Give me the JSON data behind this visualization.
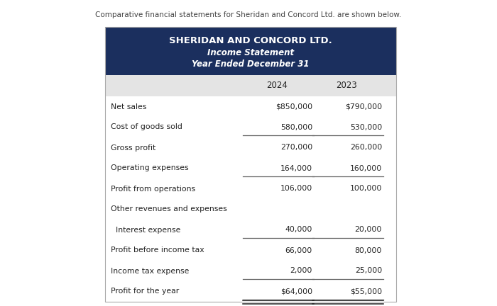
{
  "intro_text": "Comparative financial statements for Sheridan and Concord Ltd. are shown below.",
  "header_line1": "SHERIDAN AND CONCORD LTD.",
  "header_line2": "Income Statement",
  "header_line3": "Year Ended December 31",
  "header_bg": "#1b2f5e",
  "header_text_color": "#ffffff",
  "col_header_bg": "#e4e4e4",
  "col_header_2024": "2024",
  "col_header_2023": "2023",
  "rows": [
    {
      "label": "Net sales",
      "val2024": "$850,000",
      "val2023": "$790,000",
      "ul_below_2024": false,
      "ul_below_2023": false,
      "indent": false
    },
    {
      "label": "Cost of goods sold",
      "val2024": "580,000",
      "val2023": "530,000",
      "ul_below_2024": true,
      "ul_below_2023": true,
      "indent": false
    },
    {
      "label": "Gross profit",
      "val2024": "270,000",
      "val2023": "260,000",
      "ul_below_2024": false,
      "ul_below_2023": false,
      "indent": false
    },
    {
      "label": "Operating expenses",
      "val2024": "164,000",
      "val2023": "160,000",
      "ul_below_2024": true,
      "ul_below_2023": true,
      "indent": false
    },
    {
      "label": "Profit from operations",
      "val2024": "106,000",
      "val2023": "100,000",
      "ul_below_2024": false,
      "ul_below_2023": false,
      "indent": false
    },
    {
      "label": "Other revenues and expenses",
      "val2024": "",
      "val2023": "",
      "ul_below_2024": false,
      "ul_below_2023": false,
      "indent": false
    },
    {
      "label": "  Interest expense",
      "val2024": "40,000",
      "val2023": "20,000",
      "ul_below_2024": true,
      "ul_below_2023": true,
      "indent": false
    },
    {
      "label": "Profit before income tax",
      "val2024": "66,000",
      "val2023": "80,000",
      "ul_below_2024": false,
      "ul_below_2023": false,
      "indent": false
    },
    {
      "label": "Income tax expense",
      "val2024": "2,000",
      "val2023": "25,000",
      "ul_below_2024": true,
      "ul_below_2023": true,
      "indent": false
    },
    {
      "label": "Profit for the year",
      "val2024": "$64,000",
      "val2023": "$55,000",
      "ul_below_2024": true,
      "ul_below_2023": true,
      "indent": false
    }
  ],
  "double_underline_row": 9,
  "table_bg": "#ffffff",
  "outer_bg": "#f5f5f5",
  "page_bg": "#ffffff",
  "border_color": "#aaaaaa",
  "line_color": "#666666",
  "text_color": "#222222",
  "figsize": [
    7.0,
    4.32
  ],
  "dpi": 100
}
